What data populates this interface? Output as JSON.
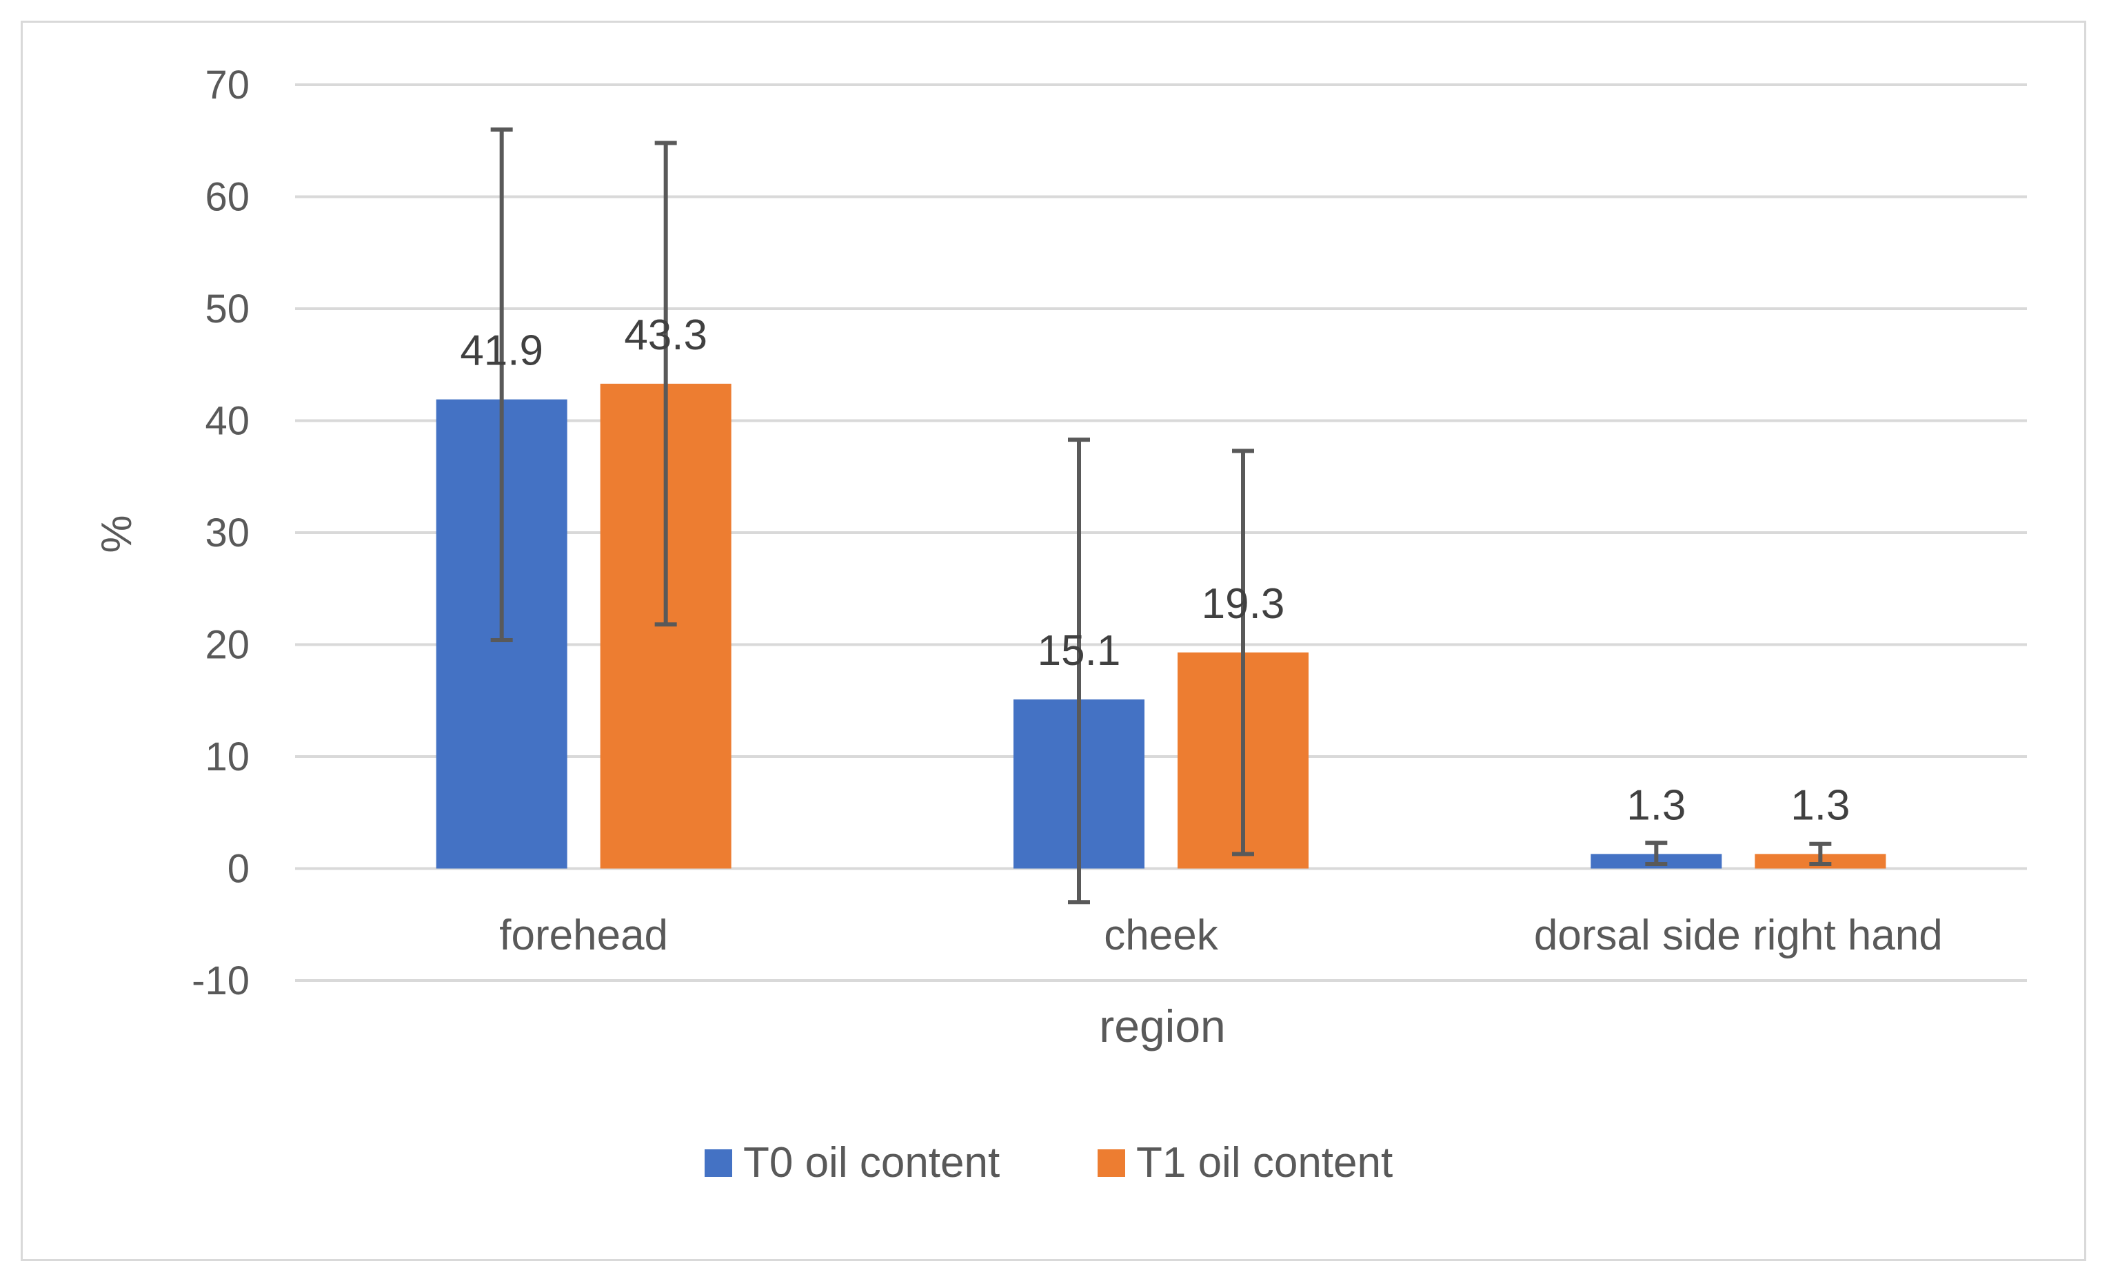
{
  "chart_data": {
    "type": "bar",
    "categories": [
      "forehead",
      "cheek",
      "dorsal side right hand"
    ],
    "series": [
      {
        "name": "T0 oil content",
        "color": "#4472c4",
        "values": [
          41.9,
          15.1,
          1.3
        ],
        "error_low": [
          20.4,
          -3.0,
          0.4
        ],
        "error_high": [
          66.0,
          38.3,
          2.3
        ]
      },
      {
        "name": "T1 oil content",
        "color": "#ed7d31",
        "values": [
          43.3,
          19.3,
          1.3
        ],
        "error_low": [
          21.8,
          1.3,
          0.4
        ],
        "error_high": [
          64.8,
          37.3,
          2.2
        ]
      }
    ],
    "data_labels": [
      [
        "41.9",
        "15.1",
        "1.3"
      ],
      [
        "43.3",
        "19.3",
        "1.3"
      ]
    ],
    "xlabel": "region",
    "ylabel": "%",
    "ylim": [
      -10,
      70
    ],
    "yticks": [
      70,
      60,
      50,
      40,
      30,
      20,
      10,
      0,
      -10
    ],
    "grid": true,
    "legend_position": "bottom",
    "colors": {
      "gridline": "#d9d9d9",
      "text": "#595959",
      "error_bar": "#595959",
      "frame": "#d9d9d9"
    }
  }
}
